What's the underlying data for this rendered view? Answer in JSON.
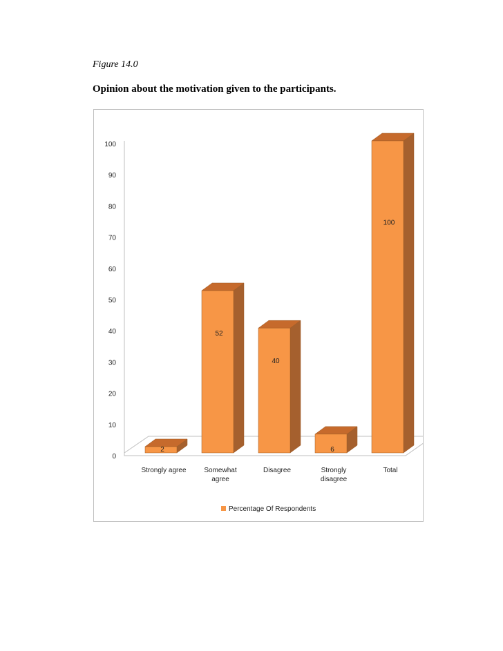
{
  "figure": {
    "label": "Figure 14.0",
    "title": "Opinion about the motivation given to the participants."
  },
  "chart_data": {
    "type": "bar",
    "style": "3d-column",
    "categories": [
      [
        "Strongly agree"
      ],
      [
        "Somewhat",
        "agree"
      ],
      [
        "Disagree"
      ],
      [
        "Strongly",
        "disagree"
      ],
      [
        "Total"
      ]
    ],
    "series": [
      {
        "name": "Percentage Of Respondents",
        "values": [
          2,
          52,
          40,
          6,
          100
        ]
      }
    ],
    "ylim": [
      0,
      100
    ],
    "yticks": [
      0,
      10,
      20,
      30,
      40,
      50,
      60,
      70,
      80,
      90,
      100
    ],
    "grid": false,
    "legend": "bottom",
    "data_labels": true,
    "colors": {
      "front": "#F79646",
      "top": "#C66A2C",
      "side": "#A5602E",
      "edge": "#9c5a24",
      "floor": "#bfbfbf"
    }
  }
}
